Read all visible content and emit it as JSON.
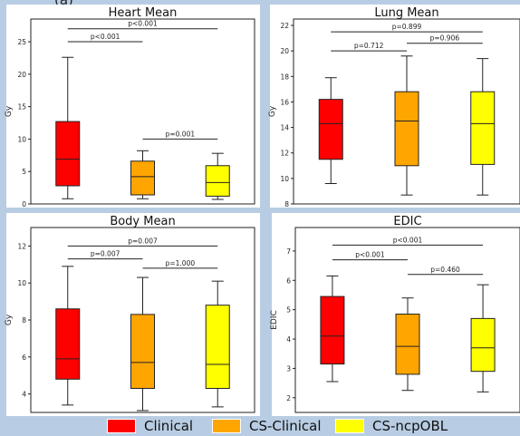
{
  "figure": {
    "top_fragment": "(a)",
    "background": "#b8cde3"
  },
  "legend": [
    {
      "name": "Clinical",
      "color": "#ff0000"
    },
    {
      "name": "CS-Clinical",
      "color": "#ffa500"
    },
    {
      "name": "CS-ncpOBL",
      "color": "#ffff00"
    }
  ],
  "chart_data": [
    {
      "type": "box",
      "title": "Heart Mean",
      "ylabel": "Gy",
      "ylim": [
        0,
        28.5
      ],
      "yticks": [
        0,
        5,
        10,
        15,
        20,
        25
      ],
      "categories": [
        "Clinical",
        "CS-Clinical",
        "CS-ncpOBL"
      ],
      "boxes": [
        {
          "min": 0.8,
          "q1": 2.8,
          "median": 6.9,
          "q3": 12.7,
          "max": 22.6
        },
        {
          "min": 0.8,
          "q1": 1.4,
          "median": 4.2,
          "q3": 6.6,
          "max": 8.2
        },
        {
          "min": 0.7,
          "q1": 1.2,
          "median": 3.3,
          "q3": 5.9,
          "max": 7.8
        }
      ],
      "annotations": [
        {
          "from": 0,
          "to": 2,
          "y": 27.0,
          "text": "p<0.001"
        },
        {
          "from": 0,
          "to": 1,
          "y": 25.0,
          "text": "p<0.001"
        },
        {
          "from": 1,
          "to": 2,
          "y": 10.0,
          "text": "p=0.001"
        }
      ]
    },
    {
      "type": "box",
      "title": "Lung Mean",
      "ylabel": "Gy",
      "ylim": [
        8,
        22.5
      ],
      "yticks": [
        8,
        10,
        12,
        14,
        16,
        18,
        20,
        22
      ],
      "categories": [
        "Clinical",
        "CS-Clinical",
        "CS-ncpOBL"
      ],
      "boxes": [
        {
          "min": 9.6,
          "q1": 11.5,
          "median": 14.3,
          "q3": 16.2,
          "max": 17.9
        },
        {
          "min": 8.7,
          "q1": 11.0,
          "median": 14.5,
          "q3": 16.8,
          "max": 19.6
        },
        {
          "min": 8.7,
          "q1": 11.1,
          "median": 14.3,
          "q3": 16.8,
          "max": 19.4
        }
      ],
      "annotations": [
        {
          "from": 0,
          "to": 2,
          "y": 21.5,
          "text": "p=0.899"
        },
        {
          "from": 0,
          "to": 1,
          "y": 20.0,
          "text": "p=0.712"
        },
        {
          "from": 1,
          "to": 2,
          "y": 20.6,
          "text": "p=0.906"
        }
      ]
    },
    {
      "type": "box",
      "title": "Body Mean",
      "ylabel": "Gy",
      "ylim": [
        3,
        13
      ],
      "yticks": [
        4,
        6,
        8,
        10,
        12
      ],
      "categories": [
        "Clinical",
        "CS-Clinical",
        "CS-ncpOBL"
      ],
      "boxes": [
        {
          "min": 3.4,
          "q1": 4.8,
          "median": 5.9,
          "q3": 8.6,
          "max": 10.9
        },
        {
          "min": 3.1,
          "q1": 4.3,
          "median": 5.7,
          "q3": 8.3,
          "max": 10.3
        },
        {
          "min": 3.3,
          "q1": 4.3,
          "median": 5.6,
          "q3": 8.8,
          "max": 10.1
        }
      ],
      "annotations": [
        {
          "from": 0,
          "to": 2,
          "y": 12.0,
          "text": "p=0.007"
        },
        {
          "from": 0,
          "to": 1,
          "y": 11.3,
          "text": "p=0.007"
        },
        {
          "from": 1,
          "to": 2,
          "y": 10.8,
          "text": "p=1.000"
        }
      ]
    },
    {
      "type": "box",
      "title": "EDIC",
      "ylabel": "EDIC",
      "ylim": [
        1.5,
        7.8
      ],
      "yticks": [
        2,
        3,
        4,
        5,
        6,
        7
      ],
      "categories": [
        "Clinical",
        "CS-Clinical",
        "CS-ncpOBL"
      ],
      "boxes": [
        {
          "min": 2.55,
          "q1": 3.15,
          "median": 4.1,
          "q3": 5.45,
          "max": 6.15
        },
        {
          "min": 2.25,
          "q1": 2.8,
          "median": 3.75,
          "q3": 4.85,
          "max": 5.4
        },
        {
          "min": 2.2,
          "q1": 2.9,
          "median": 3.7,
          "q3": 4.7,
          "max": 5.85
        }
      ],
      "annotations": [
        {
          "from": 0,
          "to": 2,
          "y": 7.2,
          "text": "p<0.001"
        },
        {
          "from": 0,
          "to": 1,
          "y": 6.7,
          "text": "p<0.001"
        },
        {
          "from": 1,
          "to": 2,
          "y": 6.2,
          "text": "p=0.460"
        }
      ]
    }
  ]
}
